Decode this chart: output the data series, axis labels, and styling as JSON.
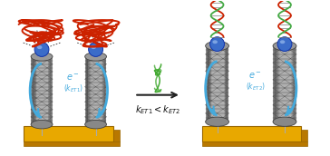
{
  "background_color": "#ffffff",
  "gold_color": "#E8A800",
  "gold_dark": "#B87800",
  "ball_color": "#3B6CC9",
  "electron_arrow_color": "#44AADD",
  "dna_ss_color": "#CC2200",
  "dna_target_color": "#44AA33",
  "dna_ds_red": "#CC2200",
  "dna_ds_green": "#44AA44",
  "text_main": "#111111",
  "figsize": [
    3.64,
    1.72
  ],
  "dpi": 100
}
